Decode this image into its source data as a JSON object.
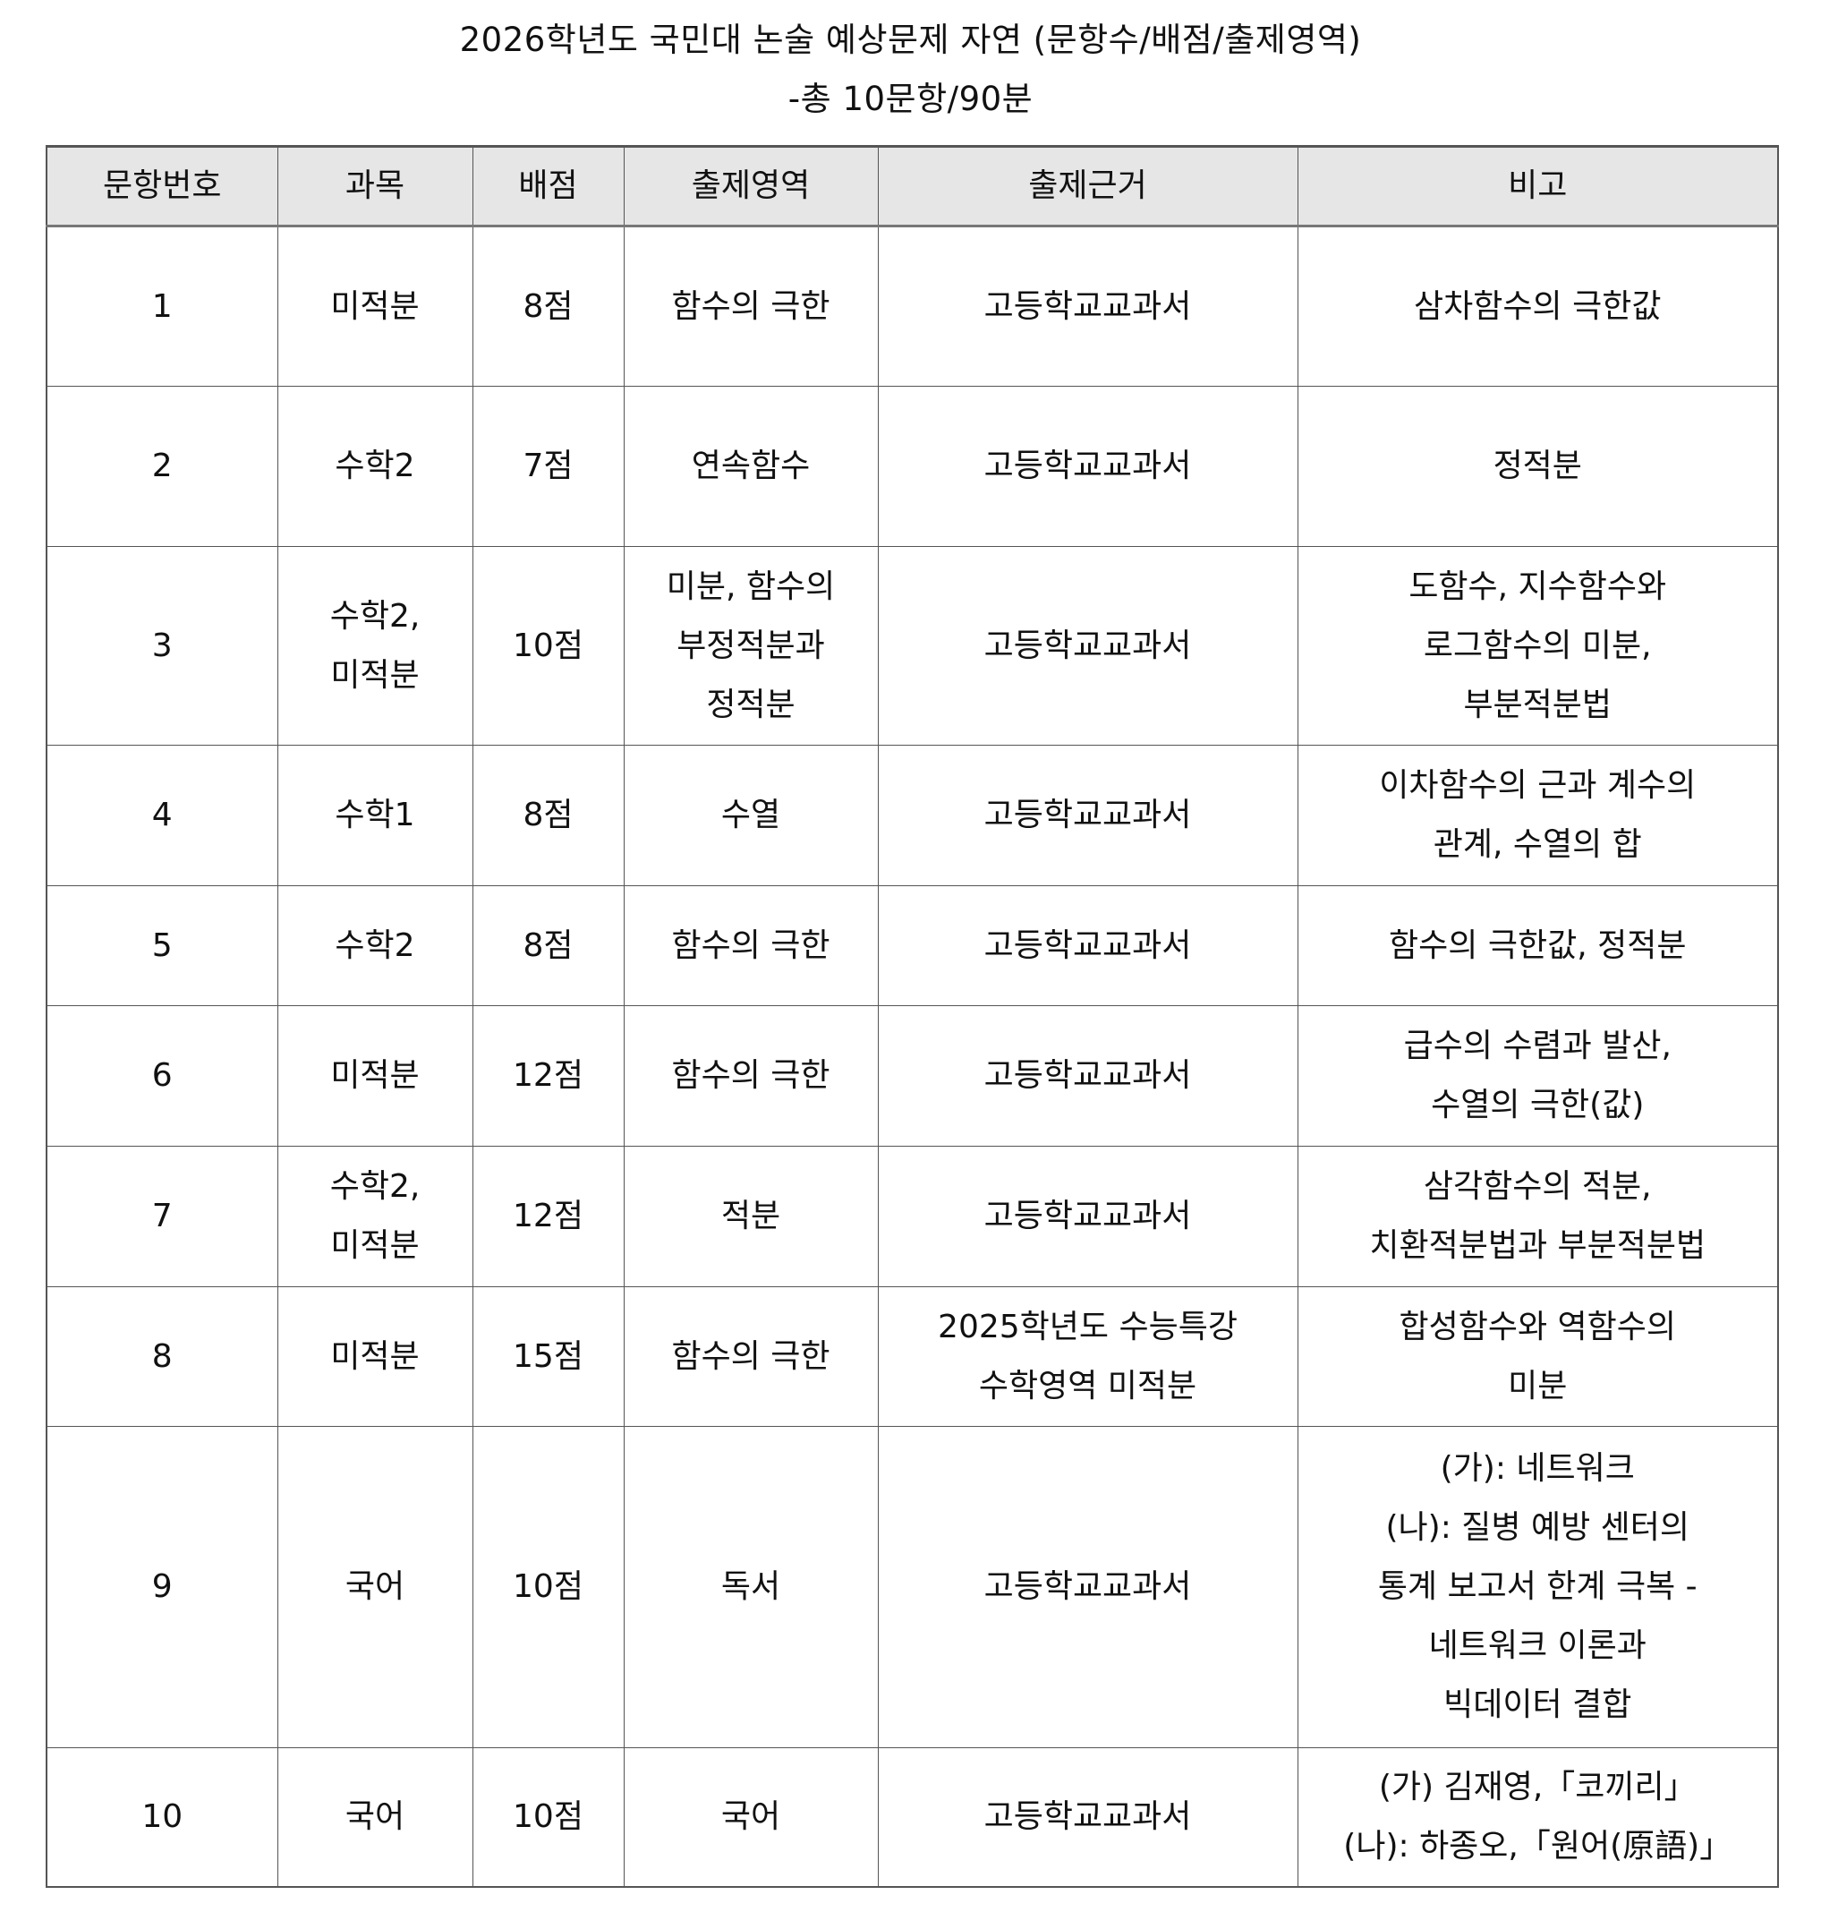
{
  "title": "2026학년도 국민대 논술 예상문제 자연 (문항수/배점/출제영역)",
  "subtitle": "-총 10문항/90분",
  "table": {
    "headers": [
      "문항번호",
      "과목",
      "배점",
      "출제영역",
      "출제근거",
      "비고"
    ],
    "rows": [
      [
        "1",
        "미적분",
        "8점",
        "함수의 극한",
        "고등학교교과서",
        "삼차함수의 극한값"
      ],
      [
        "2",
        "수학2",
        "7점",
        "연속함수",
        "고등학교교과서",
        "정적분"
      ],
      [
        "3",
        "수학2,\n미적분",
        "10점",
        "미분, 함수의\n부정적분과\n정적분",
        "고등학교교과서",
        "도함수, 지수함수와\n로그함수의 미분,\n부분적분법"
      ],
      [
        "4",
        "수학1",
        "8점",
        "수열",
        "고등학교교과서",
        "이차함수의 근과 계수의\n관계, 수열의 합"
      ],
      [
        "5",
        "수학2",
        "8점",
        "함수의 극한",
        "고등학교교과서",
        "함수의 극한값, 정적분"
      ],
      [
        "6",
        "미적분",
        "12점",
        "함수의 극한",
        "고등학교교과서",
        "급수의 수렴과 발산,\n수열의 극한(값)"
      ],
      [
        "7",
        "수학2,\n미적분",
        "12점",
        "적분",
        "고등학교교과서",
        "삼각함수의 적분,\n치환적분법과 부분적분법"
      ],
      [
        "8",
        "미적분",
        "15점",
        "함수의 극한",
        "2025학년도 수능특강\n수학영역 미적분",
        "합성함수와 역함수의\n미분"
      ],
      [
        "9",
        "국어",
        "10점",
        "독서",
        "고등학교교과서",
        "(가): 네트워크\n(나): 질병 예방 센터의\n통계 보고서 한계 극복 -\n네트워크 이론과\n빅데이터 결합"
      ],
      [
        "10",
        "국어",
        "10점",
        "국어",
        "고등학교교과서",
        "(가) 김재영,「코끼리」\n(나): 하종오,「원어(原語)」"
      ]
    ]
  }
}
